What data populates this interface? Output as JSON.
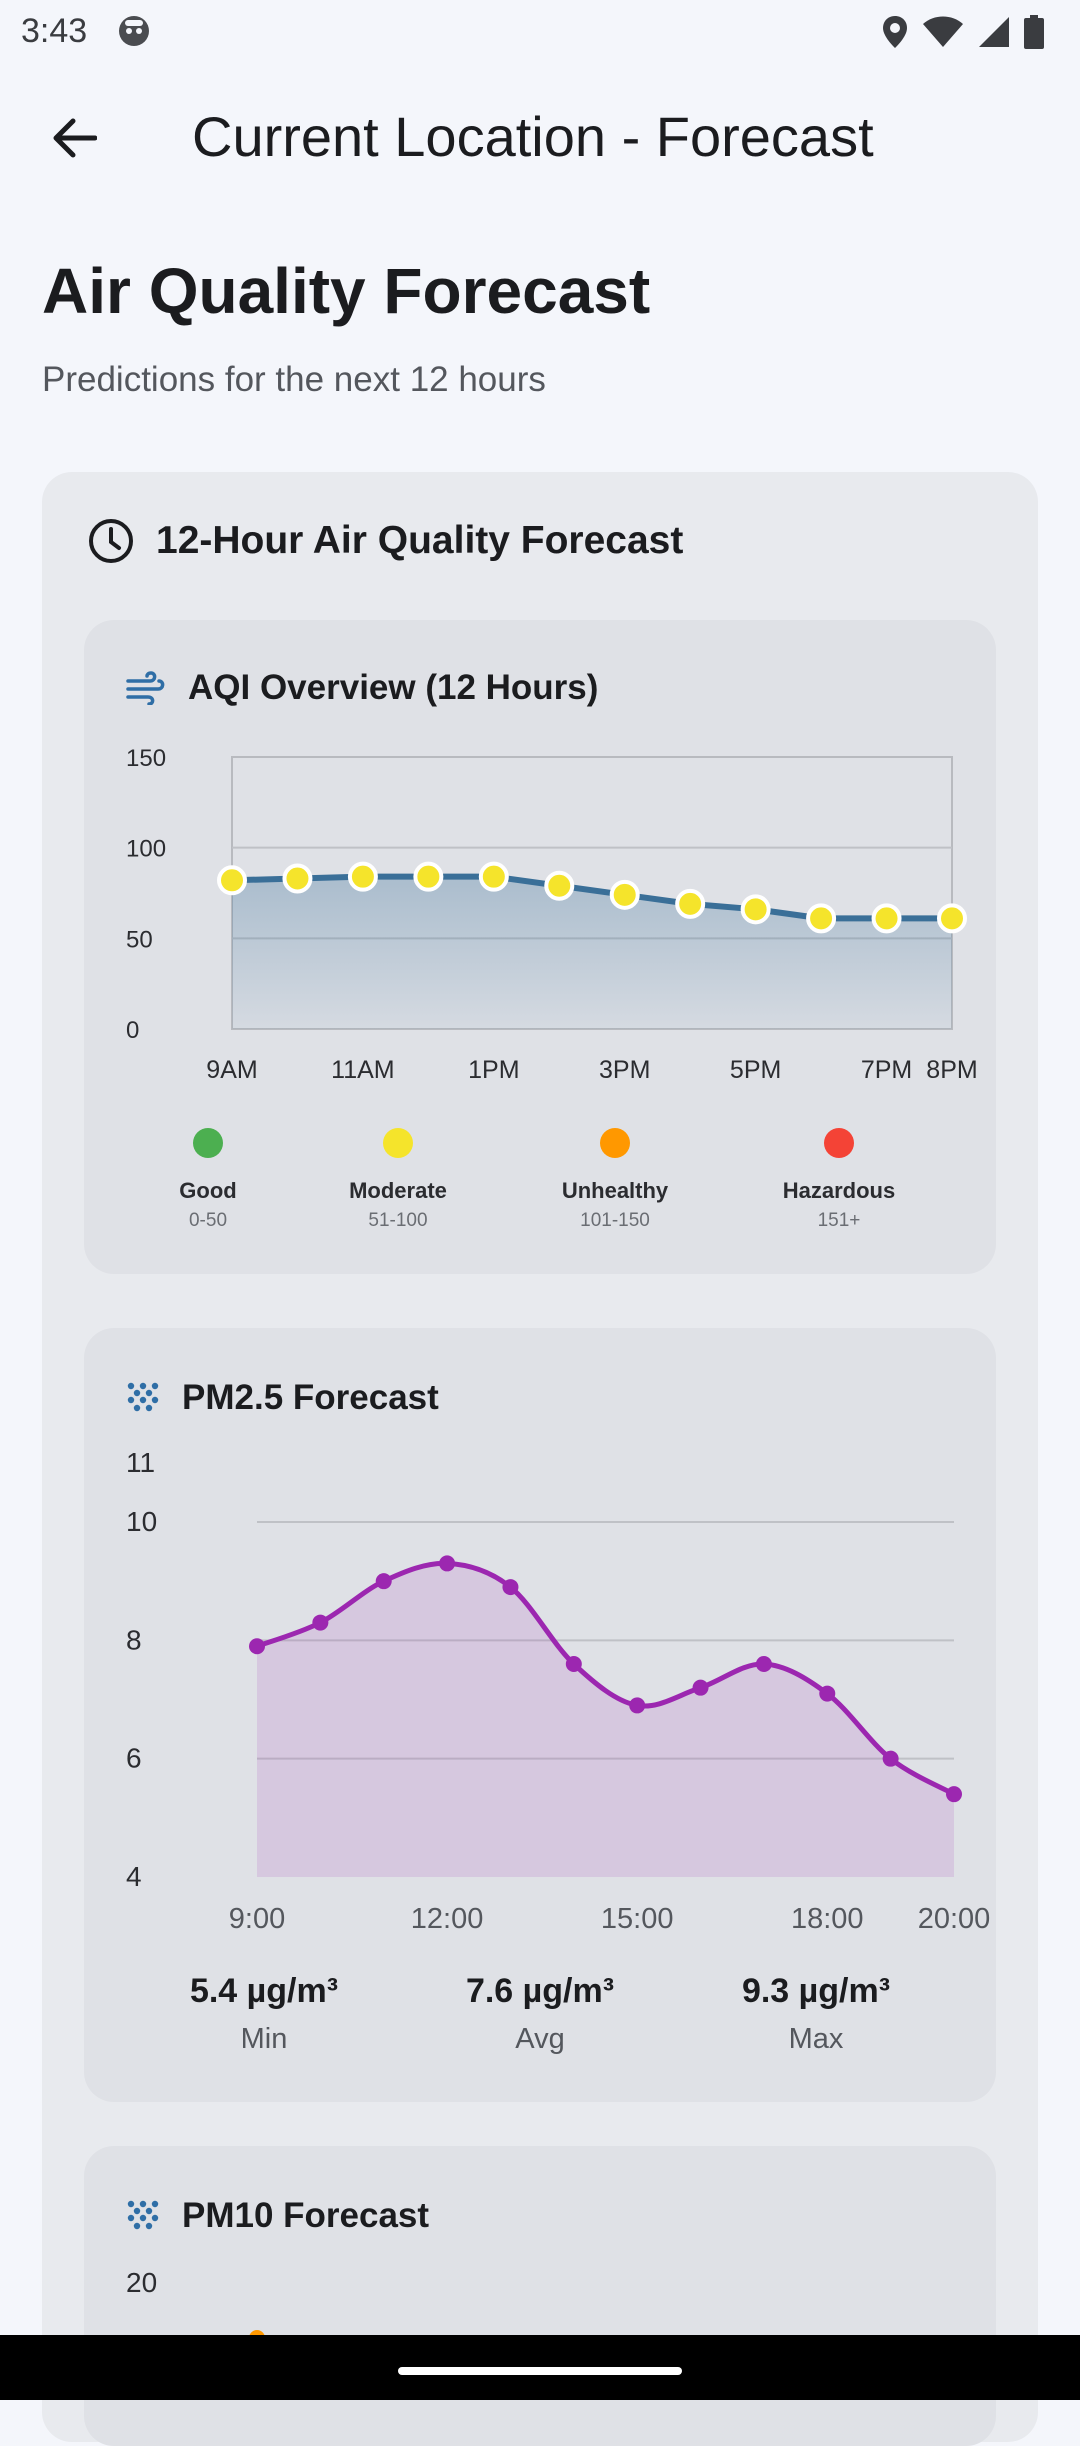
{
  "status": {
    "time": "3:43"
  },
  "appbar": {
    "title": "Current Location - Forecast"
  },
  "page": {
    "heading": "Air Quality Forecast",
    "subtitle": "Predictions for the next 12 hours"
  },
  "forecast_card": {
    "title": "12-Hour Air Quality Forecast"
  },
  "aqi": {
    "title": "AQI Overview (12 Hours)",
    "legend": [
      {
        "label": "Good",
        "range": "0-50",
        "color": "#4caf50"
      },
      {
        "label": "Moderate",
        "range": "51-100",
        "color": "#f5e42b"
      },
      {
        "label": "Unhealthy",
        "range": "101-150",
        "color": "#ff9800"
      },
      {
        "label": "Hazardous",
        "range": "151+",
        "color": "#f44336"
      }
    ]
  },
  "pm25": {
    "title": "PM2.5 Forecast",
    "stats": [
      {
        "value": "5.4 µg/m³",
        "label": "Min"
      },
      {
        "value": "7.6 µg/m³",
        "label": "Avg"
      },
      {
        "value": "9.3 µg/m³",
        "label": "Max"
      }
    ]
  },
  "pm10": {
    "title": "PM10 Forecast"
  },
  "chart_data": [
    {
      "type": "area",
      "title": "AQI Overview (12 Hours)",
      "x": [
        0,
        1,
        2,
        3,
        4,
        5,
        6,
        7,
        8,
        9,
        10,
        11
      ],
      "values": [
        82,
        83,
        84,
        84,
        84,
        79,
        74,
        69,
        66,
        61,
        61,
        61
      ],
      "ylim": [
        0,
        150
      ],
      "yticks": [
        "0",
        "50",
        "100",
        "150"
      ],
      "xtick_labels": [
        {
          "i": 0,
          "label": "9AM"
        },
        {
          "i": 2,
          "label": "11AM"
        },
        {
          "i": 4,
          "label": "1PM"
        },
        {
          "i": 6,
          "label": "3PM"
        },
        {
          "i": 8,
          "label": "5PM"
        },
        {
          "i": 10,
          "label": "7PM"
        },
        {
          "i": 11,
          "label": "8PM"
        }
      ],
      "line_color": "#3a6f98",
      "marker_color": "#f5e42b"
    },
    {
      "type": "area",
      "title": "PM2.5 Forecast",
      "x": [
        9,
        10,
        11,
        12,
        13,
        14,
        15,
        16,
        17,
        18,
        19,
        20
      ],
      "values": [
        7.9,
        8.3,
        9.0,
        9.3,
        8.9,
        7.6,
        6.9,
        7.2,
        7.6,
        7.1,
        6.0,
        5.4
      ],
      "ylim": [
        4,
        11
      ],
      "yticks": [
        "4",
        "6",
        "8",
        "10",
        "11"
      ],
      "xtick_labels": [
        {
          "i": 0,
          "label": "9:00"
        },
        {
          "i": 3,
          "label": "12:00"
        },
        {
          "i": 6,
          "label": "15:00"
        },
        {
          "i": 9,
          "label": "18:00"
        },
        {
          "i": 11,
          "label": "20:00"
        }
      ],
      "line_color": "#9c27b0"
    },
    {
      "type": "line",
      "title": "PM10 Forecast",
      "yticks": [
        "20"
      ]
    }
  ]
}
